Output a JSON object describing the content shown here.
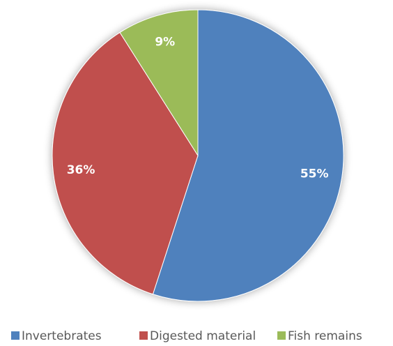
{
  "chart_data": {
    "type": "pie",
    "categories": [
      "Invertebrates",
      "Digested material",
      "Fish remains"
    ],
    "values": [
      55,
      36,
      9
    ],
    "value_labels": [
      "55%",
      "36%",
      "9%"
    ],
    "colors": [
      "#4f81bd",
      "#c0504d",
      "#9bbb59"
    ],
    "legend": "bottom"
  }
}
